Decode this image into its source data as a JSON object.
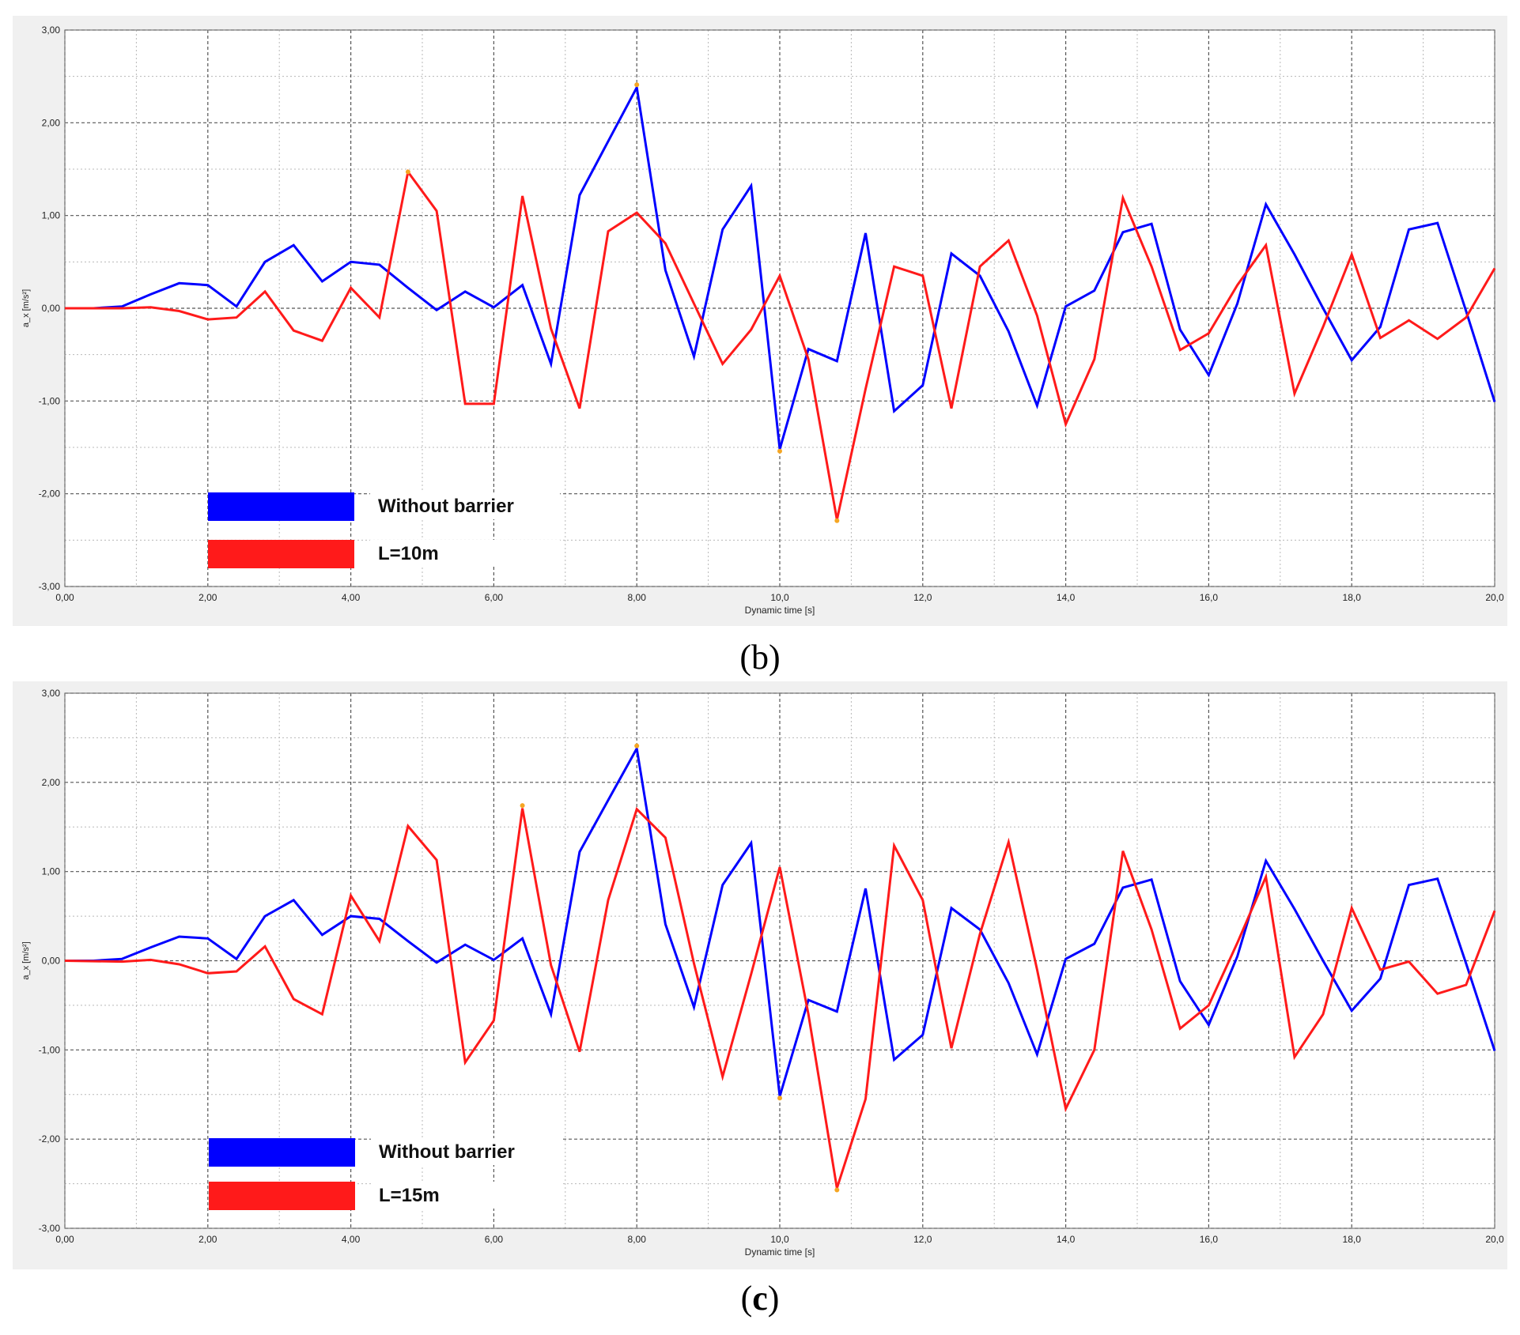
{
  "charts": [
    {
      "caption_open": "(",
      "caption_letter": "b",
      "caption_close": ")",
      "chart_data": {
        "type": "line",
        "xlabel": "Dynamic time [s]",
        "ylabel": "a_x [m/s²]",
        "xlim": [
          0,
          20
        ],
        "ylim": [
          -3,
          3
        ],
        "xticks": [
          0,
          2,
          4,
          6,
          8,
          10,
          12,
          14,
          16,
          18,
          20
        ],
        "xtick_labels": [
          "0,00",
          "2,00",
          "4,00",
          "6,00",
          "8,00",
          "10,0",
          "12,0",
          "14,0",
          "16,0",
          "18,0",
          "20,0"
        ],
        "yticks": [
          3,
          2,
          1,
          0,
          -1,
          -2,
          -3
        ],
        "ytick_labels": [
          "3,00",
          "2,00",
          "1,00",
          "0,00",
          "-1,00",
          "-2,00",
          "-3,00"
        ],
        "grid": true,
        "legend_position": "bottom-left",
        "series": [
          {
            "name": "Without barrier",
            "color": "#0000ff",
            "points": [
              [
                0,
                0
              ],
              [
                0.4,
                0
              ],
              [
                0.8,
                0.02
              ],
              [
                1.2,
                0.15
              ],
              [
                1.6,
                0.27
              ],
              [
                2.0,
                0.25
              ],
              [
                2.4,
                0.02
              ],
              [
                2.8,
                0.5
              ],
              [
                3.2,
                0.68
              ],
              [
                3.6,
                0.29
              ],
              [
                4.0,
                0.5
              ],
              [
                4.4,
                0.47
              ],
              [
                4.8,
                0.22
              ],
              [
                5.2,
                -0.02
              ],
              [
                5.6,
                0.18
              ],
              [
                6.0,
                0.01
              ],
              [
                6.4,
                0.25
              ],
              [
                6.8,
                -0.6
              ],
              [
                7.2,
                1.22
              ],
              [
                7.6,
                1.8
              ],
              [
                8.0,
                2.38
              ],
              [
                8.4,
                0.41
              ],
              [
                8.8,
                -0.52
              ],
              [
                9.2,
                0.85
              ],
              [
                9.6,
                1.32
              ],
              [
                10.0,
                -1.52
              ],
              [
                10.4,
                -0.44
              ],
              [
                10.8,
                -0.57
              ],
              [
                11.2,
                0.81
              ],
              [
                11.6,
                -1.11
              ],
              [
                12.0,
                -0.83
              ],
              [
                12.4,
                0.59
              ],
              [
                12.8,
                0.35
              ],
              [
                13.2,
                -0.25
              ],
              [
                13.6,
                -1.05
              ],
              [
                14.0,
                0.02
              ],
              [
                14.4,
                0.19
              ],
              [
                14.8,
                0.82
              ],
              [
                15.2,
                0.91
              ],
              [
                15.6,
                -0.23
              ],
              [
                16.0,
                -0.72
              ],
              [
                16.4,
                0.05
              ],
              [
                16.8,
                1.12
              ],
              [
                17.2,
                0.58
              ],
              [
                17.6,
                0
              ],
              [
                18.0,
                -0.56
              ],
              [
                18.4,
                -0.2
              ],
              [
                18.8,
                0.85
              ],
              [
                19.2,
                0.92
              ],
              [
                19.6,
                -0.03
              ],
              [
                20.0,
                -1.01
              ]
            ]
          },
          {
            "name": "L=10m",
            "color": "#ff1a1a",
            "points": [
              [
                0,
                0
              ],
              [
                0.8,
                0
              ],
              [
                1.2,
                0.01
              ],
              [
                1.6,
                -0.03
              ],
              [
                2.0,
                -0.12
              ],
              [
                2.4,
                -0.1
              ],
              [
                2.8,
                0.18
              ],
              [
                3.2,
                -0.24
              ],
              [
                3.6,
                -0.35
              ],
              [
                4.0,
                0.22
              ],
              [
                4.4,
                -0.1
              ],
              [
                4.8,
                1.47
              ],
              [
                5.2,
                1.05
              ],
              [
                5.6,
                -1.03
              ],
              [
                6.0,
                -1.03
              ],
              [
                6.4,
                1.21
              ],
              [
                6.8,
                -0.22
              ],
              [
                7.2,
                -1.08
              ],
              [
                7.6,
                0.83
              ],
              [
                8.0,
                1.03
              ],
              [
                8.4,
                0.7
              ],
              [
                8.8,
                0.05
              ],
              [
                9.2,
                -0.6
              ],
              [
                9.6,
                -0.23
              ],
              [
                10.0,
                0.35
              ],
              [
                10.4,
                -0.55
              ],
              [
                10.8,
                -2.28
              ],
              [
                11.2,
                -0.87
              ],
              [
                11.6,
                0.45
              ],
              [
                12.0,
                0.35
              ],
              [
                12.4,
                -1.08
              ],
              [
                12.8,
                0.45
              ],
              [
                13.2,
                0.73
              ],
              [
                13.6,
                -0.08
              ],
              [
                14.0,
                -1.25
              ],
              [
                14.4,
                -0.55
              ],
              [
                14.8,
                1.19
              ],
              [
                15.2,
                0.45
              ],
              [
                15.6,
                -0.45
              ],
              [
                16.0,
                -0.27
              ],
              [
                16.4,
                0.25
              ],
              [
                16.8,
                0.68
              ],
              [
                17.2,
                -0.92
              ],
              [
                17.6,
                -0.2
              ],
              [
                18.0,
                0.58
              ],
              [
                18.4,
                -0.32
              ],
              [
                18.8,
                -0.13
              ],
              [
                19.2,
                -0.33
              ],
              [
                19.6,
                -0.1
              ],
              [
                20.0,
                0.43
              ]
            ]
          }
        ],
        "peak_markers": [
          [
            4.8,
            1.47
          ],
          [
            8.0,
            2.41
          ],
          [
            10.0,
            -1.54
          ],
          [
            10.8,
            -2.29
          ]
        ]
      }
    },
    {
      "caption_open": "(",
      "caption_letter": "c",
      "caption_close": ")",
      "chart_data": {
        "type": "line",
        "xlabel": "Dynamic time [s]",
        "ylabel": "a_x [m/s²]",
        "xlim": [
          0,
          20
        ],
        "ylim": [
          -3,
          3
        ],
        "xticks": [
          0,
          2,
          4,
          6,
          8,
          10,
          12,
          14,
          16,
          18,
          20
        ],
        "xtick_labels": [
          "0,00",
          "2,00",
          "4,00",
          "6,00",
          "8,00",
          "10,0",
          "12,0",
          "14,0",
          "16,0",
          "18,0",
          "20,0"
        ],
        "yticks": [
          3,
          2,
          1,
          0,
          -1,
          -2,
          -3
        ],
        "ytick_labels": [
          "3,00",
          "2,00",
          "1,00",
          "0,00",
          "-1,00",
          "-2,00",
          "-3,00"
        ],
        "grid": true,
        "legend_position": "bottom-left",
        "series": [
          {
            "name": "Without barrier",
            "color": "#0000ff",
            "points": [
              [
                0,
                0
              ],
              [
                0.4,
                0
              ],
              [
                0.8,
                0.02
              ],
              [
                1.2,
                0.15
              ],
              [
                1.6,
                0.27
              ],
              [
                2.0,
                0.25
              ],
              [
                2.4,
                0.02
              ],
              [
                2.8,
                0.5
              ],
              [
                3.2,
                0.68
              ],
              [
                3.6,
                0.29
              ],
              [
                4.0,
                0.5
              ],
              [
                4.4,
                0.47
              ],
              [
                4.8,
                0.22
              ],
              [
                5.2,
                -0.02
              ],
              [
                5.6,
                0.18
              ],
              [
                6.0,
                0.01
              ],
              [
                6.4,
                0.25
              ],
              [
                6.8,
                -0.6
              ],
              [
                7.2,
                1.22
              ],
              [
                7.6,
                1.8
              ],
              [
                8.0,
                2.38
              ],
              [
                8.4,
                0.41
              ],
              [
                8.8,
                -0.52
              ],
              [
                9.2,
                0.85
              ],
              [
                9.6,
                1.32
              ],
              [
                10.0,
                -1.52
              ],
              [
                10.4,
                -0.44
              ],
              [
                10.8,
                -0.57
              ],
              [
                11.2,
                0.81
              ],
              [
                11.6,
                -1.11
              ],
              [
                12.0,
                -0.83
              ],
              [
                12.4,
                0.59
              ],
              [
                12.8,
                0.35
              ],
              [
                13.2,
                -0.25
              ],
              [
                13.6,
                -1.05
              ],
              [
                14.0,
                0.02
              ],
              [
                14.4,
                0.19
              ],
              [
                14.8,
                0.82
              ],
              [
                15.2,
                0.91
              ],
              [
                15.6,
                -0.23
              ],
              [
                16.0,
                -0.72
              ],
              [
                16.4,
                0.05
              ],
              [
                16.8,
                1.12
              ],
              [
                17.2,
                0.58
              ],
              [
                17.6,
                0
              ],
              [
                18.0,
                -0.56
              ],
              [
                18.4,
                -0.2
              ],
              [
                18.8,
                0.85
              ],
              [
                19.2,
                0.92
              ],
              [
                19.6,
                -0.03
              ],
              [
                20.0,
                -1.01
              ]
            ]
          },
          {
            "name": "L=15m",
            "color": "#ff1a1a",
            "points": [
              [
                0,
                0
              ],
              [
                0.8,
                -0.01
              ],
              [
                1.2,
                0.01
              ],
              [
                1.6,
                -0.04
              ],
              [
                2.0,
                -0.14
              ],
              [
                2.4,
                -0.12
              ],
              [
                2.8,
                0.16
              ],
              [
                3.2,
                -0.43
              ],
              [
                3.6,
                -0.6
              ],
              [
                4.0,
                0.73
              ],
              [
                4.4,
                0.22
              ],
              [
                4.8,
                1.51
              ],
              [
                5.2,
                1.13
              ],
              [
                5.6,
                -1.14
              ],
              [
                6.0,
                -0.67
              ],
              [
                6.4,
                1.71
              ],
              [
                6.8,
                -0.05
              ],
              [
                7.2,
                -1.02
              ],
              [
                7.6,
                0.68
              ],
              [
                8.0,
                1.7
              ],
              [
                8.4,
                1.38
              ],
              [
                8.8,
                -0.03
              ],
              [
                9.2,
                -1.3
              ],
              [
                9.6,
                -0.15
              ],
              [
                10.0,
                1.05
              ],
              [
                10.4,
                -0.6
              ],
              [
                10.8,
                -2.55
              ],
              [
                11.2,
                -1.55
              ],
              [
                11.6,
                1.29
              ],
              [
                12.0,
                0.68
              ],
              [
                12.4,
                -0.98
              ],
              [
                12.8,
                0.3
              ],
              [
                13.2,
                1.33
              ],
              [
                13.6,
                -0.1
              ],
              [
                14.0,
                -1.66
              ],
              [
                14.4,
                -1.0
              ],
              [
                14.8,
                1.23
              ],
              [
                15.2,
                0.35
              ],
              [
                15.6,
                -0.76
              ],
              [
                16.0,
                -0.5
              ],
              [
                16.4,
                0.2
              ],
              [
                16.8,
                0.94
              ],
              [
                17.2,
                -1.08
              ],
              [
                17.6,
                -0.6
              ],
              [
                18.0,
                0.59
              ],
              [
                18.4,
                -0.1
              ],
              [
                18.8,
                -0.01
              ],
              [
                19.2,
                -0.37
              ],
              [
                19.6,
                -0.27
              ],
              [
                20.0,
                0.56
              ]
            ]
          }
        ],
        "peak_markers": [
          [
            6.4,
            1.74
          ],
          [
            8.0,
            2.41
          ],
          [
            10.0,
            -1.54
          ],
          [
            10.8,
            -2.57
          ]
        ]
      }
    }
  ]
}
